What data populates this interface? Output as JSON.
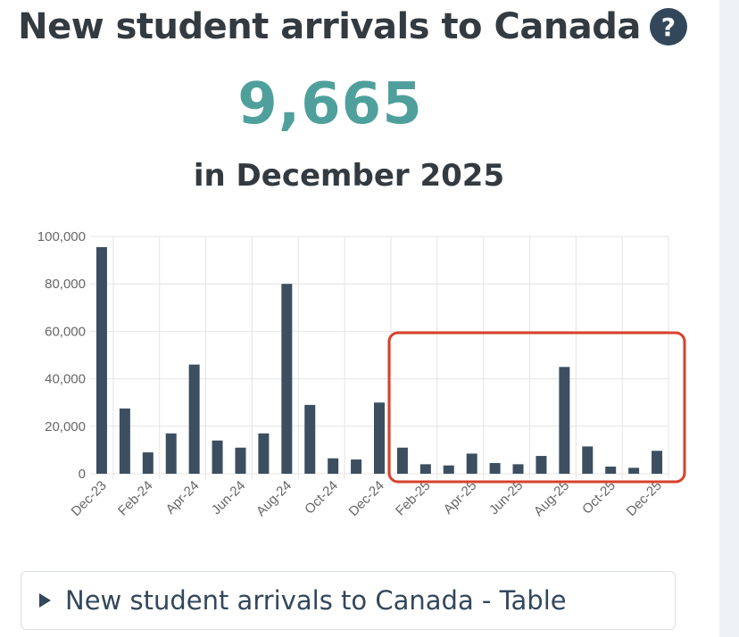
{
  "header": {
    "title": "New student arrivals to Canada",
    "help_icon": "question-circle-icon",
    "value": "9,665",
    "period": "in December 2025"
  },
  "table_toggle": {
    "icon": "triangle-right-icon",
    "label": "New student arrivals to Canada - Table"
  },
  "colors": {
    "bar": "#3c4f60",
    "value": "#4fa09c",
    "highlight": "#d9402b",
    "grid": "#e4e4e4"
  },
  "chart_data": {
    "type": "bar",
    "title": "",
    "xlabel": "",
    "ylabel": "",
    "ylim": [
      0,
      100000
    ],
    "yticks": [
      "0",
      "20,000",
      "40,000",
      "60,000",
      "80,000",
      "100,000"
    ],
    "categories": [
      "Dec-23",
      "Jan-24",
      "Feb-24",
      "Mar-24",
      "Apr-24",
      "May-24",
      "Jun-24",
      "Jul-24",
      "Aug-24",
      "Sep-24",
      "Oct-24",
      "Nov-24",
      "Dec-24",
      "Jan-25",
      "Feb-25",
      "Mar-25",
      "Apr-25",
      "May-25",
      "Jun-25",
      "Jul-25",
      "Aug-25",
      "Sep-25",
      "Oct-25",
      "Nov-25",
      "Dec-25"
    ],
    "x_tick_labels": [
      "Dec-23",
      "Feb-24",
      "Apr-24",
      "Jun-24",
      "Aug-24",
      "Oct-24",
      "Dec-24",
      "Feb-25",
      "Apr-25",
      "Jun-25",
      "Aug-25",
      "Oct-25",
      "Dec-25"
    ],
    "values": [
      95500,
      27500,
      9000,
      17000,
      46000,
      14000,
      11000,
      17000,
      80000,
      29000,
      6500,
      6000,
      30000,
      11000,
      4000,
      3500,
      8500,
      4500,
      4000,
      7500,
      45000,
      11500,
      3000,
      2500,
      9665
    ],
    "grid": true,
    "highlight": {
      "start": "Jan-25",
      "end": "Dec-25",
      "color": "#d9402b"
    }
  }
}
